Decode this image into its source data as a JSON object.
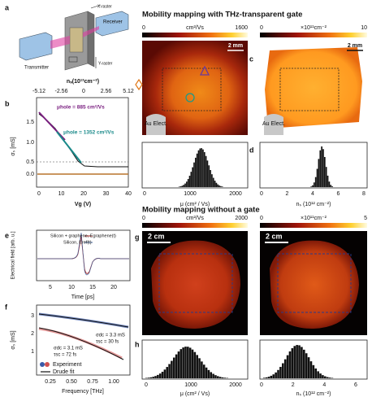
{
  "panel_a": {
    "letter": "a",
    "transmitter": "Transmitter",
    "receiver": "Receiver",
    "x_raster": "X-raster",
    "y_raster": "Y-raster"
  },
  "panel_b": {
    "letter": "b",
    "top_axis_label": "nₛ(10¹²cm⁻²)",
    "top_ticks": [
      "-5.12",
      "-2.56",
      "0",
      "2.56",
      "5.12"
    ],
    "y_label": "σₛ [mS]",
    "y_ticks": [
      "1.5",
      "1.0",
      "0.5",
      "0.0"
    ],
    "x_label": "Vg (V)",
    "x_ticks": [
      "0",
      "10",
      "20",
      "30",
      "40"
    ],
    "annotation_1": "μhole = 885 cm²/Vs",
    "annotation_2": "μhole = 1352 cm²/Vs"
  },
  "section_1": {
    "title": "Mobility mapping with THz-transparent gate"
  },
  "panel_c": {
    "letter": "c",
    "cbar_left": [
      "0",
      "cm²/Vs",
      "1600"
    ],
    "cbar_right": [
      "0",
      "×10¹¹cm⁻²",
      "10"
    ],
    "scale_left": "2 mm",
    "scale_right": "2 mm",
    "electrode_left": "Au Elect.",
    "electrode_right": "Au Elect."
  },
  "panel_d": {
    "letter": "d",
    "left_ticks": [
      "0",
      "1000",
      "2000"
    ],
    "left_label": "μ (cm² / Vs)",
    "right_ticks": [
      "0",
      "2",
      "4",
      "6",
      "8"
    ],
    "right_label": "nₛ (10¹² cm⁻²)"
  },
  "panel_e": {
    "letter": "e",
    "legend_1": "Silicon + graphene, Egraphene(t)",
    "legend_2": "Silicon, Eref(t)",
    "y_label": "Electrical field [arb. u.]",
    "x_ticks": [
      "5",
      "10",
      "15",
      "20"
    ],
    "x_label": "Time [ps]"
  },
  "panel_f": {
    "letter": "f",
    "y_ticks": [
      "3",
      "2",
      "1"
    ],
    "y_label": "σₛ [mS]",
    "x_ticks": [
      "0.25",
      "0.50",
      "0.75",
      "1.00"
    ],
    "x_label": "Frequency [THz]",
    "fit_1": [
      "σdc = 3.3 mS",
      "τsc = 30 fs"
    ],
    "fit_2": [
      "σdc = 3.1 mS",
      "τsc = 72 fs"
    ],
    "legend_1": "Experiment",
    "legend_2": "Drude fit"
  },
  "section_2": {
    "title": "Mobility mapping without a gate"
  },
  "panel_g": {
    "letter": "g",
    "cbar_left": [
      "0",
      "cm²/Vs",
      "2000"
    ],
    "cbar_right": [
      "0",
      "×10¹¹cm⁻²",
      "5"
    ],
    "scale_left": "2 cm",
    "scale_right": "2 cm"
  },
  "panel_h": {
    "letter": "h",
    "left_ticks": [
      "0",
      "1000",
      "2000"
    ],
    "left_label": "μ (cm² / Vs)",
    "right_ticks": [
      "0",
      "2",
      "4",
      "6"
    ],
    "right_label": "nₛ (10¹² cm⁻²)"
  }
}
